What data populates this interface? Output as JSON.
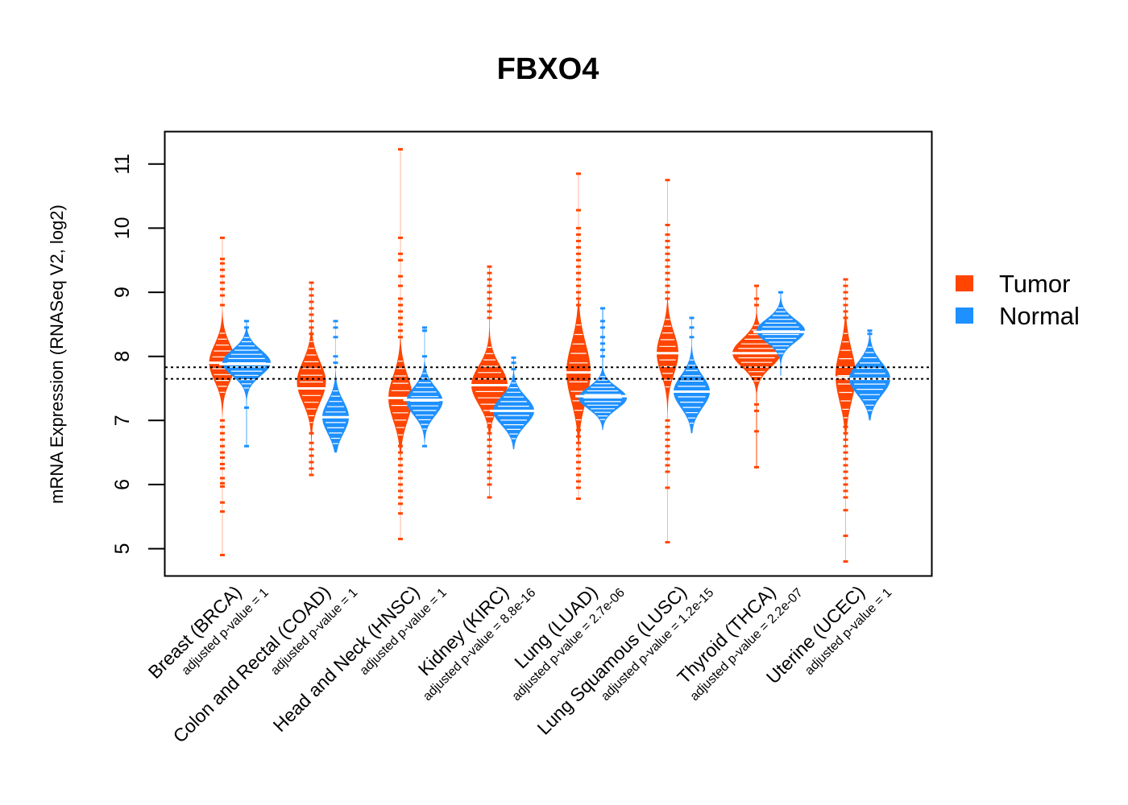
{
  "chart_data": {
    "type": "beanplot",
    "title": "FBXO4",
    "ylabel": "mRNA Expression (RNASeq V2, log2)",
    "ylim": [
      4.58,
      11.5
    ],
    "yticks": [
      5,
      6,
      7,
      8,
      9,
      10,
      11
    ],
    "reference_lines": [
      7.83,
      7.65
    ],
    "legend": [
      {
        "label": "Tumor",
        "color": "#FF4500"
      },
      {
        "label": "Normal",
        "color": "#1E90FF"
      }
    ],
    "categories": [
      {
        "name": "Breast (BRCA)",
        "pvalue": "adjusted p-value = 1",
        "tumor": {
          "median": 7.9,
          "center": 7.9,
          "spread": 0.28,
          "range": [
            4.9,
            9.85
          ],
          "width": 0.55,
          "outliers": [
            4.9,
            5.58,
            5.72,
            5.97,
            6.02,
            6.1,
            6.25,
            6.32,
            6.42,
            6.5,
            6.6,
            6.7,
            6.8,
            6.9,
            7.0,
            8.8,
            8.95,
            9.05,
            9.15,
            9.25,
            9.35,
            9.45,
            9.52,
            9.85
          ]
        },
        "normal": {
          "median": 7.88,
          "center": 7.9,
          "spread": 0.2,
          "range": [
            6.6,
            8.55
          ],
          "width": 1.0,
          "outliers": [
            6.6,
            7.2,
            8.45,
            8.55
          ]
        }
      },
      {
        "name": "Colon and Rectal (COAD)",
        "pvalue": "adjusted p-value = 1",
        "tumor": {
          "median": 7.5,
          "center": 7.6,
          "spread": 0.32,
          "range": [
            6.15,
            9.15
          ],
          "width": 0.6,
          "outliers": [
            6.15,
            6.25,
            6.35,
            6.45,
            6.55,
            6.65,
            6.8,
            8.35,
            8.45,
            8.55,
            8.65,
            8.75,
            8.85,
            8.95,
            9.05,
            9.15
          ]
        },
        "normal": {
          "median": 7.05,
          "center": 7.05,
          "spread": 0.25,
          "range": [
            6.5,
            8.55
          ],
          "width": 0.55,
          "outliers": [
            7.9,
            8.0,
            8.3,
            8.45,
            8.55
          ]
        }
      },
      {
        "name": "Head and Neck (HNSC)",
        "pvalue": "adjusted p-value = 1",
        "tumor": {
          "median": 7.35,
          "center": 7.35,
          "spread": 0.35,
          "range": [
            5.15,
            11.23
          ],
          "width": 0.5,
          "outliers": [
            5.15,
            5.55,
            5.7,
            5.8,
            5.9,
            6.0,
            6.1,
            6.2,
            6.3,
            6.4,
            6.5,
            6.6,
            8.3,
            8.4,
            8.5,
            8.6,
            8.7,
            8.8,
            8.9,
            9.1,
            9.25,
            9.5,
            9.6,
            9.85,
            11.23
          ]
        },
        "normal": {
          "median": 7.32,
          "center": 7.3,
          "spread": 0.22,
          "range": [
            6.6,
            8.45
          ],
          "width": 0.75,
          "outliers": [
            6.6,
            8.0,
            8.4,
            8.45
          ]
        }
      },
      {
        "name": "Kidney (KIRC)",
        "pvalue": "adjusted p-value = 8.8e-16",
        "tumor": {
          "median": 7.55,
          "center": 7.55,
          "spread": 0.3,
          "range": [
            5.8,
            9.4
          ],
          "width": 0.75,
          "outliers": [
            5.8,
            6.0,
            6.1,
            6.2,
            6.3,
            6.4,
            6.5,
            6.6,
            6.7,
            6.8,
            6.9,
            8.6,
            8.7,
            8.8,
            8.9,
            9.0,
            9.1,
            9.2,
            9.3,
            9.4
          ]
        },
        "normal": {
          "median": 7.15,
          "center": 7.15,
          "spread": 0.22,
          "range": [
            6.55,
            7.98
          ],
          "width": 0.85,
          "outliers": [
            7.8,
            7.9,
            7.98
          ]
        }
      },
      {
        "name": "Lung (LUAD)",
        "pvalue": "adjusted p-value = 2.7e-06",
        "tumor": {
          "median": 7.75,
          "center": 7.75,
          "spread": 0.45,
          "range": [
            5.78,
            10.85
          ],
          "width": 0.5,
          "outliers": [
            5.78,
            5.95,
            6.05,
            6.15,
            6.25,
            6.35,
            6.45,
            6.55,
            6.65,
            6.75,
            6.85,
            8.8,
            8.9,
            9.0,
            9.1,
            9.2,
            9.3,
            9.4,
            9.5,
            9.6,
            9.7,
            9.8,
            9.9,
            10.0,
            10.28,
            10.85
          ]
        },
        "normal": {
          "median": 7.38,
          "center": 7.35,
          "spread": 0.17,
          "range": [
            6.85,
            8.75
          ],
          "width": 1.0,
          "outliers": [
            8.0,
            8.1,
            8.2,
            8.3,
            8.45,
            8.55,
            8.75
          ]
        }
      },
      {
        "name": "Lung Squamous (LUSC)",
        "pvalue": "adjusted p-value = 1.2e-15",
        "tumor": {
          "median": 8.05,
          "center": 8.05,
          "spread": 0.32,
          "range": [
            5.1,
            10.75
          ],
          "width": 0.45,
          "outliers": [
            5.1,
            5.95,
            6.2,
            6.3,
            6.4,
            6.5,
            6.6,
            6.7,
            6.8,
            6.9,
            7.0,
            8.9,
            9.0,
            9.1,
            9.2,
            9.3,
            9.4,
            9.5,
            9.6,
            9.7,
            9.8,
            9.9,
            10.05,
            10.75
          ]
        },
        "normal": {
          "median": 7.45,
          "center": 7.45,
          "spread": 0.25,
          "range": [
            6.8,
            8.6
          ],
          "width": 0.75,
          "outliers": [
            8.3,
            8.45,
            8.6
          ]
        }
      },
      {
        "name": "Thyroid (THCA)",
        "pvalue": "adjusted p-value = 2.2e-07",
        "tumor": {
          "median": 8.05,
          "center": 8.05,
          "spread": 0.22,
          "range": [
            6.27,
            9.1
          ],
          "width": 1.0,
          "outliers": [
            6.27,
            6.83,
            7.15,
            7.25,
            8.8,
            8.9,
            9.1
          ]
        },
        "normal": {
          "median": 8.38,
          "center": 8.4,
          "spread": 0.18,
          "range": [
            7.7,
            9.0
          ],
          "width": 1.0,
          "outliers": [
            9.0
          ]
        }
      },
      {
        "name": "Uterine (UCEC)",
        "pvalue": "adjusted p-value = 1",
        "tumor": {
          "median": 7.67,
          "center": 7.7,
          "spread": 0.4,
          "range": [
            4.8,
            9.2
          ],
          "width": 0.42,
          "outliers": [
            4.8,
            5.2,
            5.6,
            5.8,
            5.9,
            6.0,
            6.1,
            6.2,
            6.3,
            6.4,
            6.5,
            6.6,
            6.7,
            6.8,
            6.9,
            8.6,
            8.7,
            8.8,
            8.9,
            9.0,
            9.1,
            9.2
          ]
        },
        "normal": {
          "median": 7.65,
          "center": 7.65,
          "spread": 0.25,
          "range": [
            7.0,
            8.4
          ],
          "width": 0.85,
          "outliers": [
            8.35,
            8.4
          ]
        }
      }
    ]
  }
}
